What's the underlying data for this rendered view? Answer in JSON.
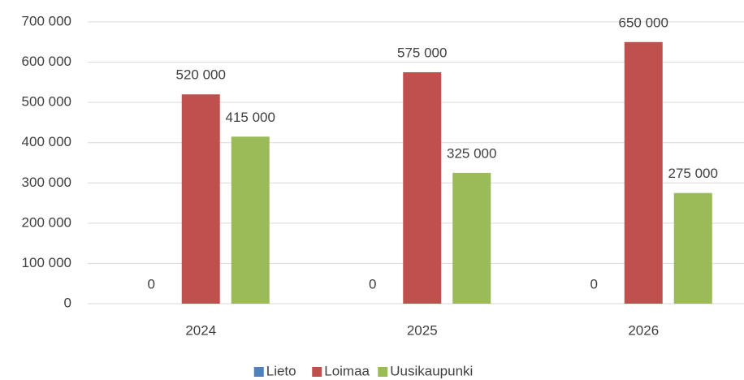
{
  "chart_data": {
    "type": "bar",
    "categories": [
      "2024",
      "2025",
      "2026"
    ],
    "series": [
      {
        "name": "Lieto",
        "color": "#4f81bd",
        "values": [
          0,
          0,
          0
        ],
        "value_labels": [
          "0",
          "0",
          "0"
        ]
      },
      {
        "name": "Loimaa",
        "color": "#c0504d",
        "values": [
          520000,
          575000,
          650000
        ],
        "value_labels": [
          "520 000",
          "575 000",
          "650 000"
        ]
      },
      {
        "name": "Uusikaupunki",
        "color": "#9bbb59",
        "values": [
          415000,
          325000,
          275000
        ],
        "value_labels": [
          "415 000",
          "325 000",
          "275 000"
        ]
      }
    ],
    "ylim": [
      0,
      700000
    ],
    "yticks": [
      {
        "value": 0,
        "label": "0"
      },
      {
        "value": 100000,
        "label": "100 000"
      },
      {
        "value": 200000,
        "label": "200 000"
      },
      {
        "value": 300000,
        "label": "300 000"
      },
      {
        "value": 400000,
        "label": "400 000"
      },
      {
        "value": 500000,
        "label": "500 000"
      },
      {
        "value": 600000,
        "label": "600 000"
      },
      {
        "value": 700000,
        "label": "700 000"
      }
    ],
    "grid": true,
    "legend": "bottom"
  }
}
